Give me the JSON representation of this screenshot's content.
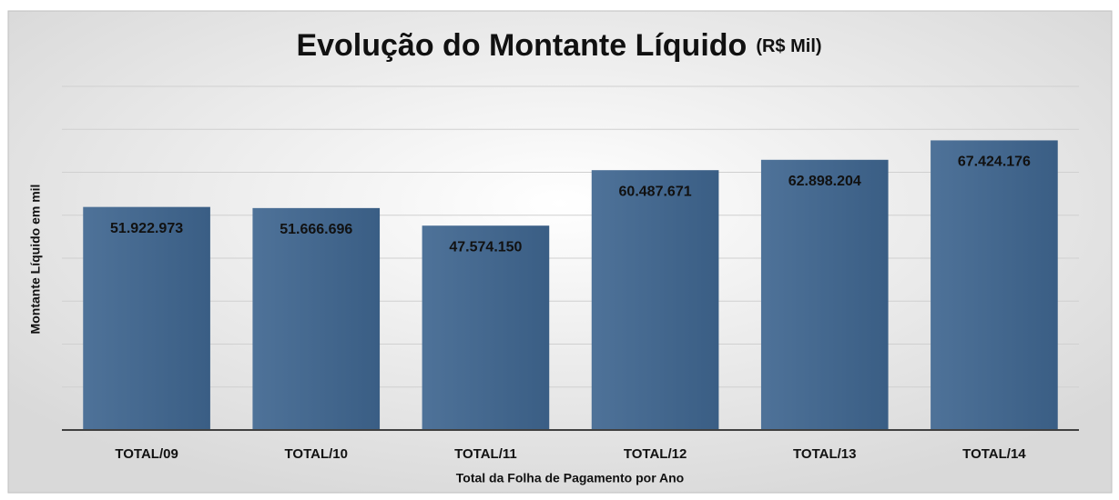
{
  "chart_data": {
    "type": "bar",
    "title": "Evolução do Montante Líquido",
    "title_suffix": "(R$ Mil)",
    "xlabel": "Total da Folha de Pagamento por Ano",
    "ylabel": "Montante  Líquido em mil",
    "categories": [
      "TOTAL/09",
      "TOTAL/10",
      "TOTAL/11",
      "TOTAL/12",
      "TOTAL/13",
      "TOTAL/14"
    ],
    "values": [
      51922973,
      51666696,
      47574150,
      60487671,
      62898204,
      67424176
    ],
    "value_labels": [
      "51.922.973",
      "51.666.696",
      "47.574.150",
      "60.487.671",
      "62.898.204",
      "67.424.176"
    ],
    "color": "#3f6690",
    "ylim": [
      0,
      80000000
    ],
    "yticks": [
      0,
      10000000,
      20000000,
      30000000,
      40000000,
      50000000,
      60000000,
      70000000,
      80000000
    ],
    "grid": true
  }
}
